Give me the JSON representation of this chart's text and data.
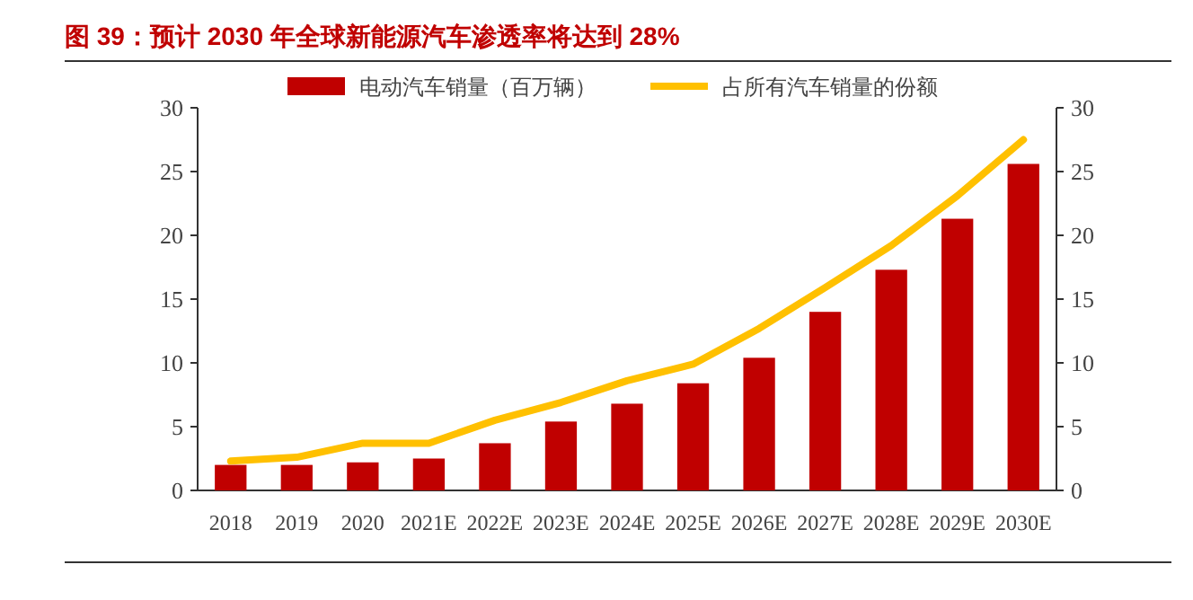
{
  "chart_data": {
    "type": "bar",
    "title": "图 39：预计 2030 年全球新能源汽车渗透率将达到 28%",
    "categories": [
      "2018",
      "2019",
      "2020",
      "2021E",
      "2022E",
      "2023E",
      "2024E",
      "2025E",
      "2026E",
      "2027E",
      "2028E",
      "2029E",
      "2030E"
    ],
    "series": [
      {
        "name": "电动汽车销量（百万辆）",
        "color": "#c00000",
        "values": [
          2.0,
          2.0,
          2.2,
          2.5,
          3.7,
          5.4,
          6.8,
          8.4,
          10.4,
          14.0,
          17.3,
          21.3,
          25.6
        ]
      },
      {
        "name": "占所有汽车销量的份额",
        "type": "line",
        "axis": "y2",
        "color": "#ffc000",
        "values": [
          2.3,
          2.6,
          3.7,
          3.7,
          5.5,
          6.9,
          8.6,
          9.9,
          12.7,
          15.9,
          19.2,
          23.1,
          27.5
        ]
      }
    ],
    "ylim": [
      0,
      30
    ],
    "yticks": [
      0,
      5,
      10,
      15,
      20,
      25,
      30
    ],
    "y2lim": [
      0,
      30
    ],
    "y2ticks": [
      0,
      5,
      10,
      15,
      20,
      25,
      30
    ],
    "legend": "top",
    "grid": false,
    "marker": "none"
  }
}
